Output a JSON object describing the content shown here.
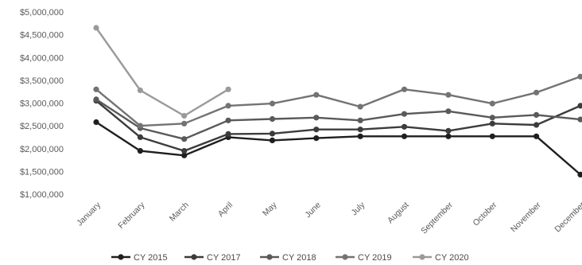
{
  "chart_data": {
    "type": "line",
    "categories": [
      "January",
      "February",
      "March",
      "April",
      "May",
      "June",
      "July",
      "August",
      "September",
      "October",
      "November",
      "December"
    ],
    "y_tick_labels": [
      "$1,000,000",
      "$1,500,000",
      "$2,000,000",
      "$2,500,000",
      "$3,000,000",
      "$3,500,000",
      "$4,000,000",
      "$4,500,000",
      "$5,000,000"
    ],
    "ylim": [
      1000000,
      5000000
    ],
    "grid": false,
    "legend_position": "bottom",
    "series": [
      {
        "name": "CY 2015",
        "color": "#1f1f1f",
        "values": [
          2580000,
          1950000,
          1850000,
          2250000,
          2180000,
          2230000,
          2270000,
          2270000,
          2270000,
          2270000,
          2270000,
          1430000
        ]
      },
      {
        "name": "CY 2017",
        "color": "#3c3c3c",
        "values": [
          3050000,
          2250000,
          1950000,
          2320000,
          2330000,
          2420000,
          2420000,
          2480000,
          2390000,
          2550000,
          2520000,
          2940000
        ]
      },
      {
        "name": "CY 2018",
        "color": "#5a5a5a",
        "values": [
          3080000,
          2450000,
          2210000,
          2620000,
          2650000,
          2680000,
          2620000,
          2760000,
          2820000,
          2680000,
          2740000,
          2640000
        ]
      },
      {
        "name": "CY 2019",
        "color": "#737373",
        "values": [
          3300000,
          2500000,
          2550000,
          2940000,
          2990000,
          3180000,
          2920000,
          3300000,
          3180000,
          2990000,
          3230000,
          3580000
        ]
      },
      {
        "name": "CY 2020",
        "color": "#9a9a9a",
        "values": [
          4650000,
          3280000,
          2720000,
          3300000,
          null,
          null,
          null,
          null,
          null,
          null,
          null,
          null
        ]
      }
    ]
  }
}
